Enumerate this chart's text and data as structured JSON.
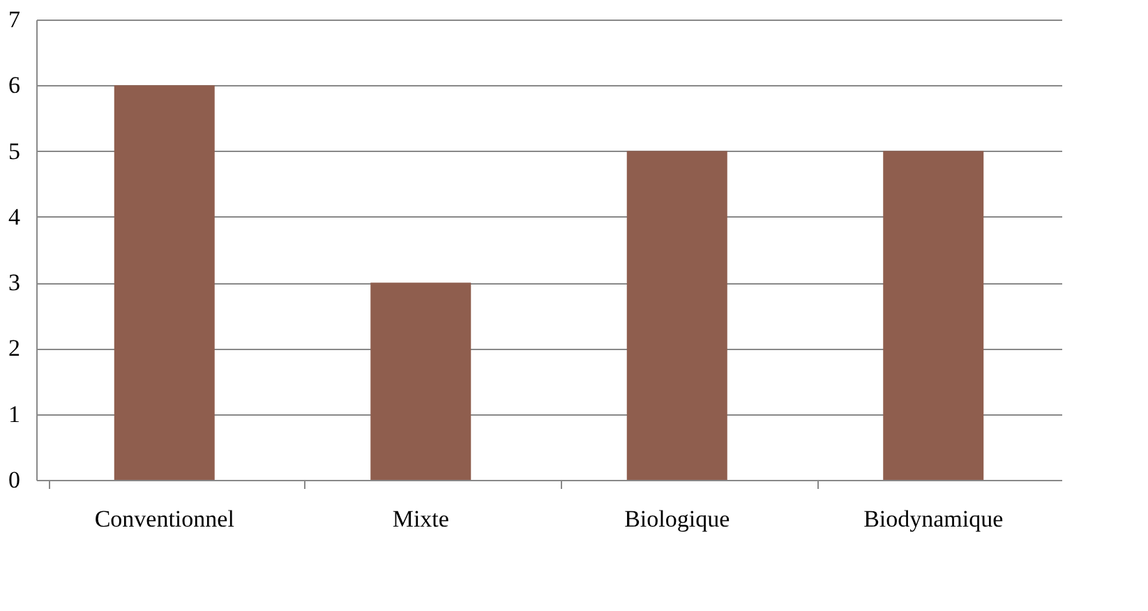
{
  "chart_data": {
    "type": "bar",
    "categories": [
      "Conventionnel",
      "Mixte",
      "Biologique",
      "Biodynamique"
    ],
    "values": [
      6,
      3,
      5,
      5
    ],
    "color": "#8f5e4e",
    "ylim": [
      0,
      7
    ],
    "yticks": [
      0,
      1,
      2,
      3,
      4,
      5,
      6,
      7
    ],
    "grid": "y"
  }
}
